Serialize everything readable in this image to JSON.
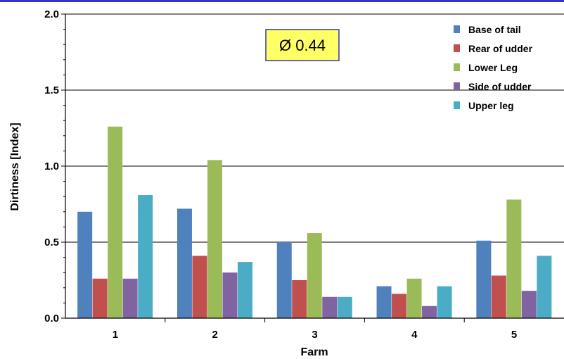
{
  "chart_data": {
    "type": "bar",
    "xlabel": "Farm",
    "ylabel": "Dirtiness [Index]",
    "categories": [
      "1",
      "2",
      "3",
      "4",
      "5"
    ],
    "ylim": [
      0,
      2.0
    ],
    "yticks": [
      "0.0",
      "0.5",
      "1.0",
      "1.5",
      "2.0"
    ],
    "grid": "horizontal",
    "legend_position": "top-right",
    "annotation": "Ø 0.44",
    "series": [
      {
        "name": "Base of tail",
        "color": "#4f81bd",
        "values": [
          0.7,
          0.72,
          0.5,
          0.21,
          0.51
        ]
      },
      {
        "name": "Rear of udder",
        "color": "#c0504d",
        "values": [
          0.26,
          0.41,
          0.25,
          0.16,
          0.28
        ]
      },
      {
        "name": "Lower Leg",
        "color": "#9bbb59",
        "values": [
          1.26,
          1.04,
          0.56,
          0.26,
          0.78
        ]
      },
      {
        "name": "Side of udder",
        "color": "#8064a2",
        "values": [
          0.26,
          0.3,
          0.14,
          0.08,
          0.18
        ]
      },
      {
        "name": "Upper leg",
        "color": "#4bacc6",
        "values": [
          0.81,
          0.37,
          0.14,
          0.21,
          0.41
        ]
      }
    ],
    "colors": {
      "top_rule": "#3333cc",
      "annotation_fill": "#ffff66",
      "annotation_border": "#3333aa"
    }
  }
}
